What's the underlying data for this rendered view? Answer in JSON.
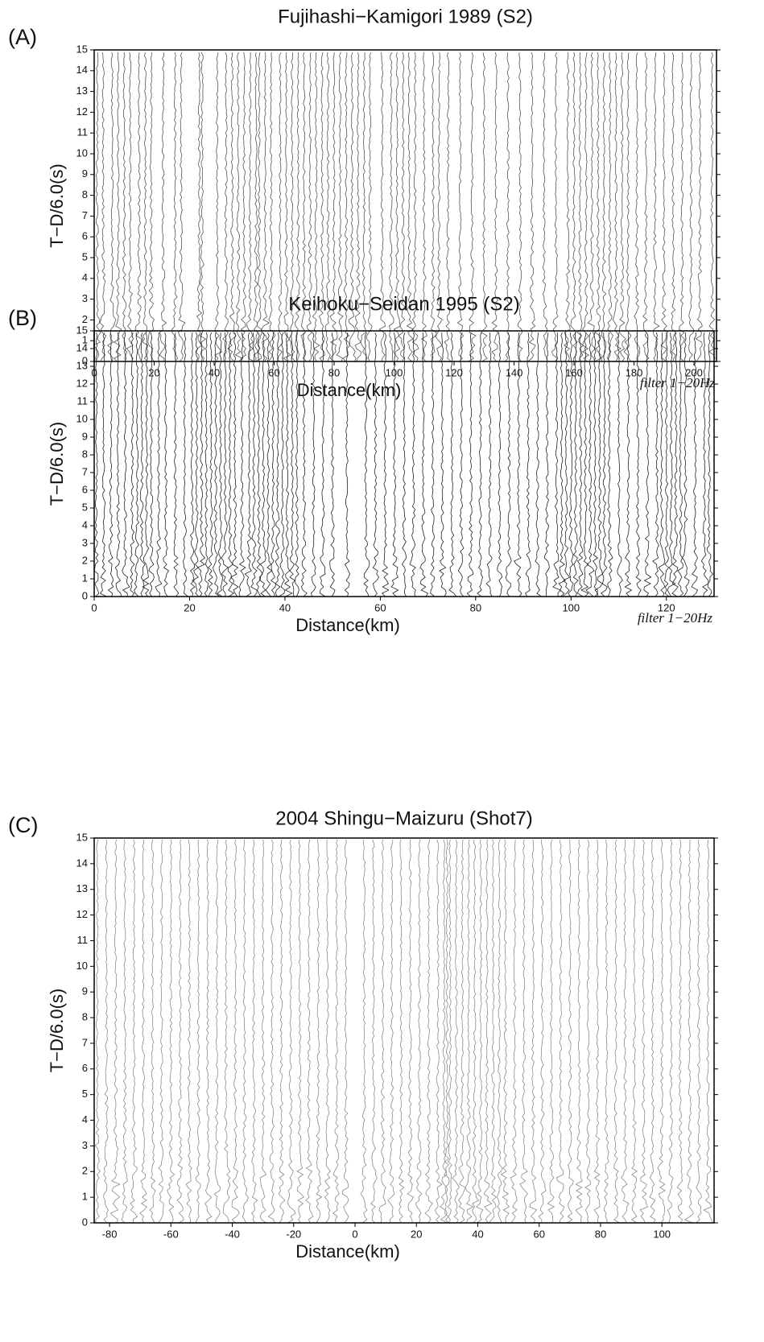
{
  "chart_data": [
    {
      "type": "record-section",
      "panel": "(A)",
      "title": "Fujihashi−Kamigori 1989 (S2)",
      "xlabel": "Distance(km)",
      "ylabel": "T−D/6.0(s)",
      "note": "filter 1−20Hz",
      "xlim": [
        0,
        207.5
      ],
      "ylim": [
        0,
        15
      ],
      "xticks": [
        0,
        20,
        40,
        60,
        80,
        100,
        120,
        140,
        160,
        180,
        200
      ],
      "yticks": [
        0,
        1,
        2,
        3,
        4,
        5,
        6,
        7,
        8,
        9,
        10,
        11,
        12,
        13,
        14,
        15
      ],
      "trace_color": "#555555",
      "x": [
        1,
        3,
        6,
        8,
        10,
        12,
        15,
        17,
        19,
        23,
        27,
        29,
        35,
        36,
        41,
        44,
        46,
        48,
        50,
        52,
        54,
        55,
        57,
        59,
        62,
        64,
        66,
        68,
        70,
        72,
        74,
        76,
        78,
        80,
        82,
        84,
        86,
        88,
        90,
        92,
        96,
        99,
        101,
        103,
        105,
        107,
        110,
        113,
        115,
        118,
        122,
        126,
        130,
        134,
        138,
        142,
        146,
        150,
        154,
        158,
        160,
        162,
        164,
        166,
        168,
        170,
        172,
        174,
        176,
        178,
        181,
        184,
        187,
        190,
        193,
        196,
        199,
        202,
        206
      ]
    },
    {
      "type": "record-section",
      "panel": "(B)",
      "title": "Keihoku−Seidan 1995 (S2)",
      "xlabel": "Distance(km)",
      "ylabel": "T−D/6.0(s)",
      "note": "filter 1−20Hz",
      "xlim": [
        0,
        130
      ],
      "ylim": [
        0,
        15
      ],
      "xticks": [
        0,
        20,
        40,
        60,
        80,
        100,
        120
      ],
      "yticks": [
        0,
        1,
        2,
        3,
        4,
        5,
        6,
        7,
        8,
        9,
        10,
        11,
        12,
        13,
        14,
        15
      ],
      "trace_color": "#222222",
      "x": [
        0.5,
        2,
        3.5,
        5,
        6.5,
        8,
        9,
        10,
        11,
        12,
        13.5,
        15,
        17,
        19,
        20.5,
        21.5,
        22.5,
        23.5,
        24.5,
        25.5,
        26.5,
        27.5,
        28.5,
        29.5,
        31,
        32.5,
        33.5,
        34.5,
        35.5,
        36.5,
        37.5,
        38.5,
        39.5,
        40.5,
        41.5,
        42.5,
        44,
        46,
        48,
        50,
        53,
        57,
        59,
        61,
        63,
        65,
        67,
        69,
        71,
        73,
        75,
        77,
        79,
        81,
        83,
        85,
        87,
        89,
        91,
        93,
        95,
        97,
        98,
        99,
        100,
        101,
        102,
        103,
        104,
        105,
        106,
        107,
        108,
        110,
        112,
        114,
        116,
        118,
        119,
        120,
        121,
        122,
        123,
        124,
        126,
        128,
        129
      ]
    },
    {
      "type": "record-section",
      "panel": "(C)",
      "title": "2004 Shingu−Maizuru (Shot7)",
      "xlabel": "Distance(km)",
      "ylabel": "T−D/6.0(s)",
      "xlim": [
        -85,
        117
      ],
      "ylim": [
        0,
        15
      ],
      "xticks": [
        -80,
        -60,
        -40,
        -20,
        0,
        20,
        40,
        60,
        80,
        100
      ],
      "yticks": [
        0,
        1,
        2,
        3,
        4,
        5,
        6,
        7,
        8,
        9,
        10,
        11,
        12,
        13,
        14,
        15
      ],
      "trace_color": "#8a8a8a",
      "x": [
        -84,
        -81,
        -78,
        -75,
        -72,
        -69,
        -66,
        -63,
        -60,
        -57,
        -54,
        -51,
        -48,
        -45,
        -42,
        -39,
        -36,
        -33,
        -30,
        -27,
        -24,
        -21,
        -18,
        -15,
        -12,
        -9,
        -6,
        -3,
        3,
        6,
        9,
        12,
        15,
        18,
        21,
        24,
        27,
        29,
        30,
        31,
        33,
        35,
        37,
        39,
        41,
        43,
        45,
        47,
        49,
        52,
        55,
        58,
        61,
        64,
        67,
        70,
        73,
        76,
        79,
        82,
        85,
        88,
        91,
        94,
        97,
        100,
        103,
        106,
        109,
        112,
        115
      ]
    }
  ]
}
